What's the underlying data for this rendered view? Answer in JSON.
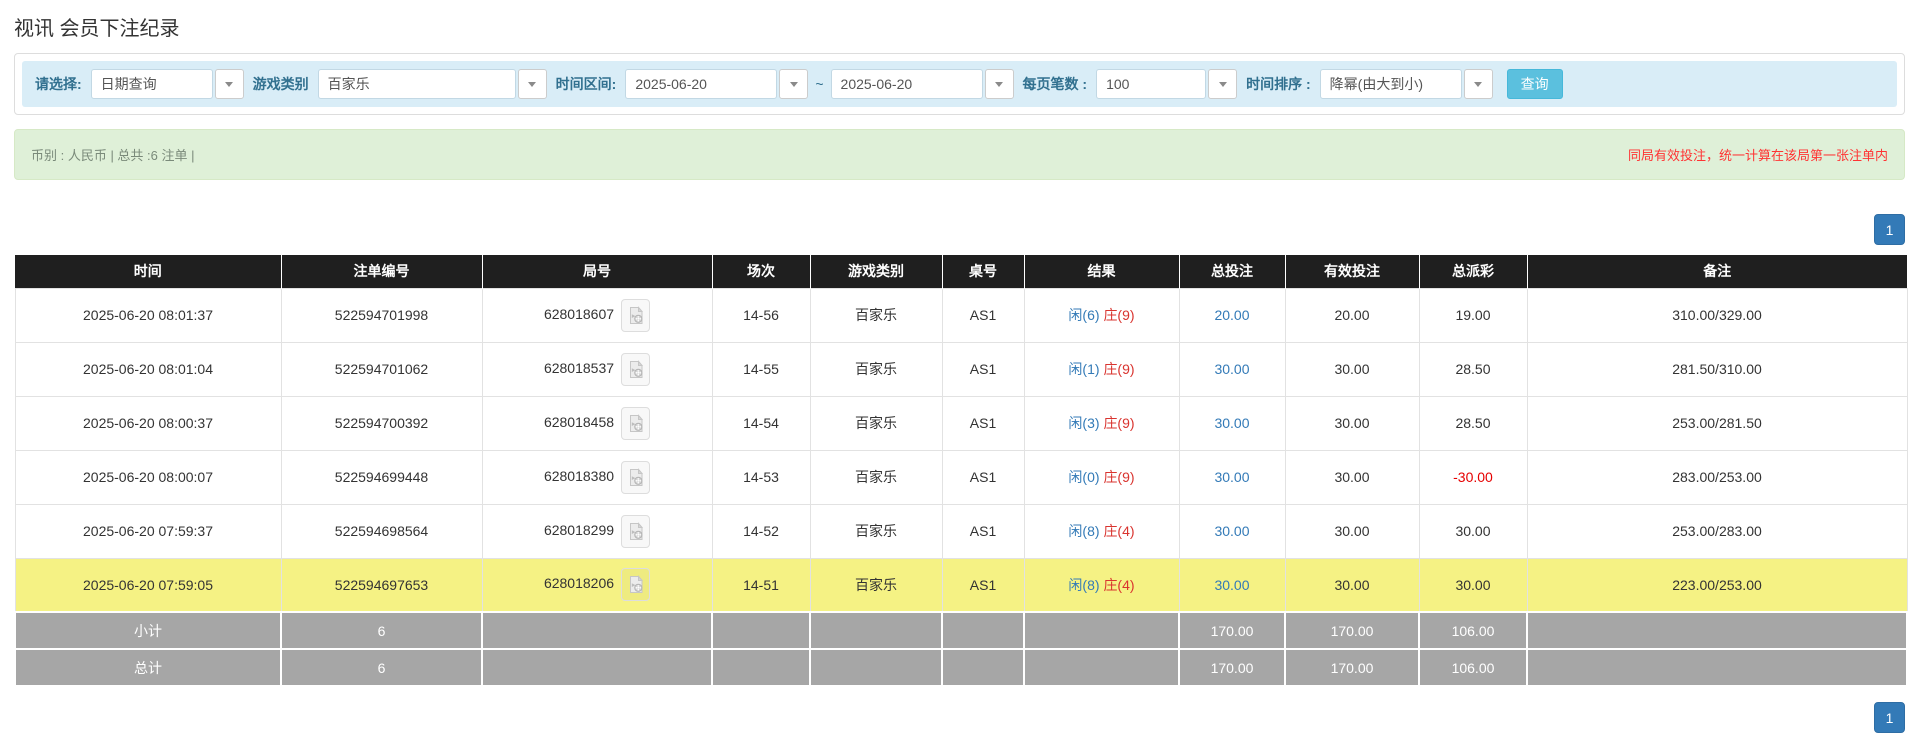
{
  "title": "视讯 会员下注纪录",
  "colors": {
    "accent_blue": "#337ab7",
    "search_button_bg": "#5bc0de",
    "filter_bar_bg": "#d9edf7",
    "summary_bg": "#dff0d8",
    "warning_red": "#ff3333",
    "table_header_bg": "#1f1f1f",
    "highlight_row_yellow": "#f5f284",
    "footer_row_gray": "#a6a6a6",
    "result_player_blue": "#337ab7",
    "result_banker_red": "#d9342f",
    "negative_value_red": "#e60000"
  },
  "icons": {
    "dropdown": "chevron-down-icon",
    "video": "video-record-icon"
  },
  "filters": {
    "select_type": {
      "label": "请选择:",
      "value": "日期查询"
    },
    "game_type": {
      "label": "游戏类别",
      "value": "百家乐"
    },
    "time_range": {
      "label": "时间区间:",
      "from": "2025-06-20",
      "separator": "~",
      "to": "2025-06-20"
    },
    "page_size": {
      "label": "每页笔数 :",
      "value": "100"
    },
    "time_sort": {
      "label": "时间排序 :",
      "value": "降幂(由大到小)"
    },
    "search_label": "查询"
  },
  "summary": {
    "left": "币别 : 人民币 | 总共 :6 注单 |",
    "right": "同局有效投注，统一计算在该局第一张注单内"
  },
  "pagination": {
    "page": "1"
  },
  "table": {
    "headers": [
      "时间",
      "注单编号",
      "局号",
      "场次",
      "游戏类别",
      "桌号",
      "结果",
      "总投注",
      "有效投注",
      "总派彩",
      "备注"
    ],
    "rows": [
      {
        "time": "2025-06-20 08:01:37",
        "bet_id": "522594701998",
        "round_id": "628018607",
        "session": "14-56",
        "game_type": "百家乐",
        "table_no": "AS1",
        "result_player": "闲(6)",
        "result_banker": "庄(9)",
        "total_bet": "20.00",
        "valid_bet": "20.00",
        "payout": "19.00",
        "remark": "310.00/329.00",
        "highlight": false
      },
      {
        "time": "2025-06-20 08:01:04",
        "bet_id": "522594701062",
        "round_id": "628018537",
        "session": "14-55",
        "game_type": "百家乐",
        "table_no": "AS1",
        "result_player": "闲(1)",
        "result_banker": "庄(9)",
        "total_bet": "30.00",
        "valid_bet": "30.00",
        "payout": "28.50",
        "remark": "281.50/310.00",
        "highlight": false
      },
      {
        "time": "2025-06-20 08:00:37",
        "bet_id": "522594700392",
        "round_id": "628018458",
        "session": "14-54",
        "game_type": "百家乐",
        "table_no": "AS1",
        "result_player": "闲(3)",
        "result_banker": "庄(9)",
        "total_bet": "30.00",
        "valid_bet": "30.00",
        "payout": "28.50",
        "remark": "253.00/281.50",
        "highlight": false
      },
      {
        "time": "2025-06-20 08:00:07",
        "bet_id": "522594699448",
        "round_id": "628018380",
        "session": "14-53",
        "game_type": "百家乐",
        "table_no": "AS1",
        "result_player": "闲(0)",
        "result_banker": "庄(9)",
        "total_bet": "30.00",
        "valid_bet": "30.00",
        "payout": "-30.00",
        "remark": "283.00/253.00",
        "highlight": false
      },
      {
        "time": "2025-06-20 07:59:37",
        "bet_id": "522594698564",
        "round_id": "628018299",
        "session": "14-52",
        "game_type": "百家乐",
        "table_no": "AS1",
        "result_player": "闲(8)",
        "result_banker": "庄(4)",
        "total_bet": "30.00",
        "valid_bet": "30.00",
        "payout": "30.00",
        "remark": "253.00/283.00",
        "highlight": false
      },
      {
        "time": "2025-06-20 07:59:05",
        "bet_id": "522594697653",
        "round_id": "628018206",
        "session": "14-51",
        "game_type": "百家乐",
        "table_no": "AS1",
        "result_player": "闲(8)",
        "result_banker": "庄(4)",
        "total_bet": "30.00",
        "valid_bet": "30.00",
        "payout": "30.00",
        "remark": "223.00/253.00",
        "highlight": true
      }
    ],
    "footer": {
      "subtotal": {
        "label": "小计",
        "count": "6",
        "total_bet": "170.00",
        "valid_bet": "170.00",
        "payout": "106.00"
      },
      "total": {
        "label": "总计",
        "count": "6",
        "total_bet": "170.00",
        "valid_bet": "170.00",
        "payout": "106.00"
      }
    }
  }
}
